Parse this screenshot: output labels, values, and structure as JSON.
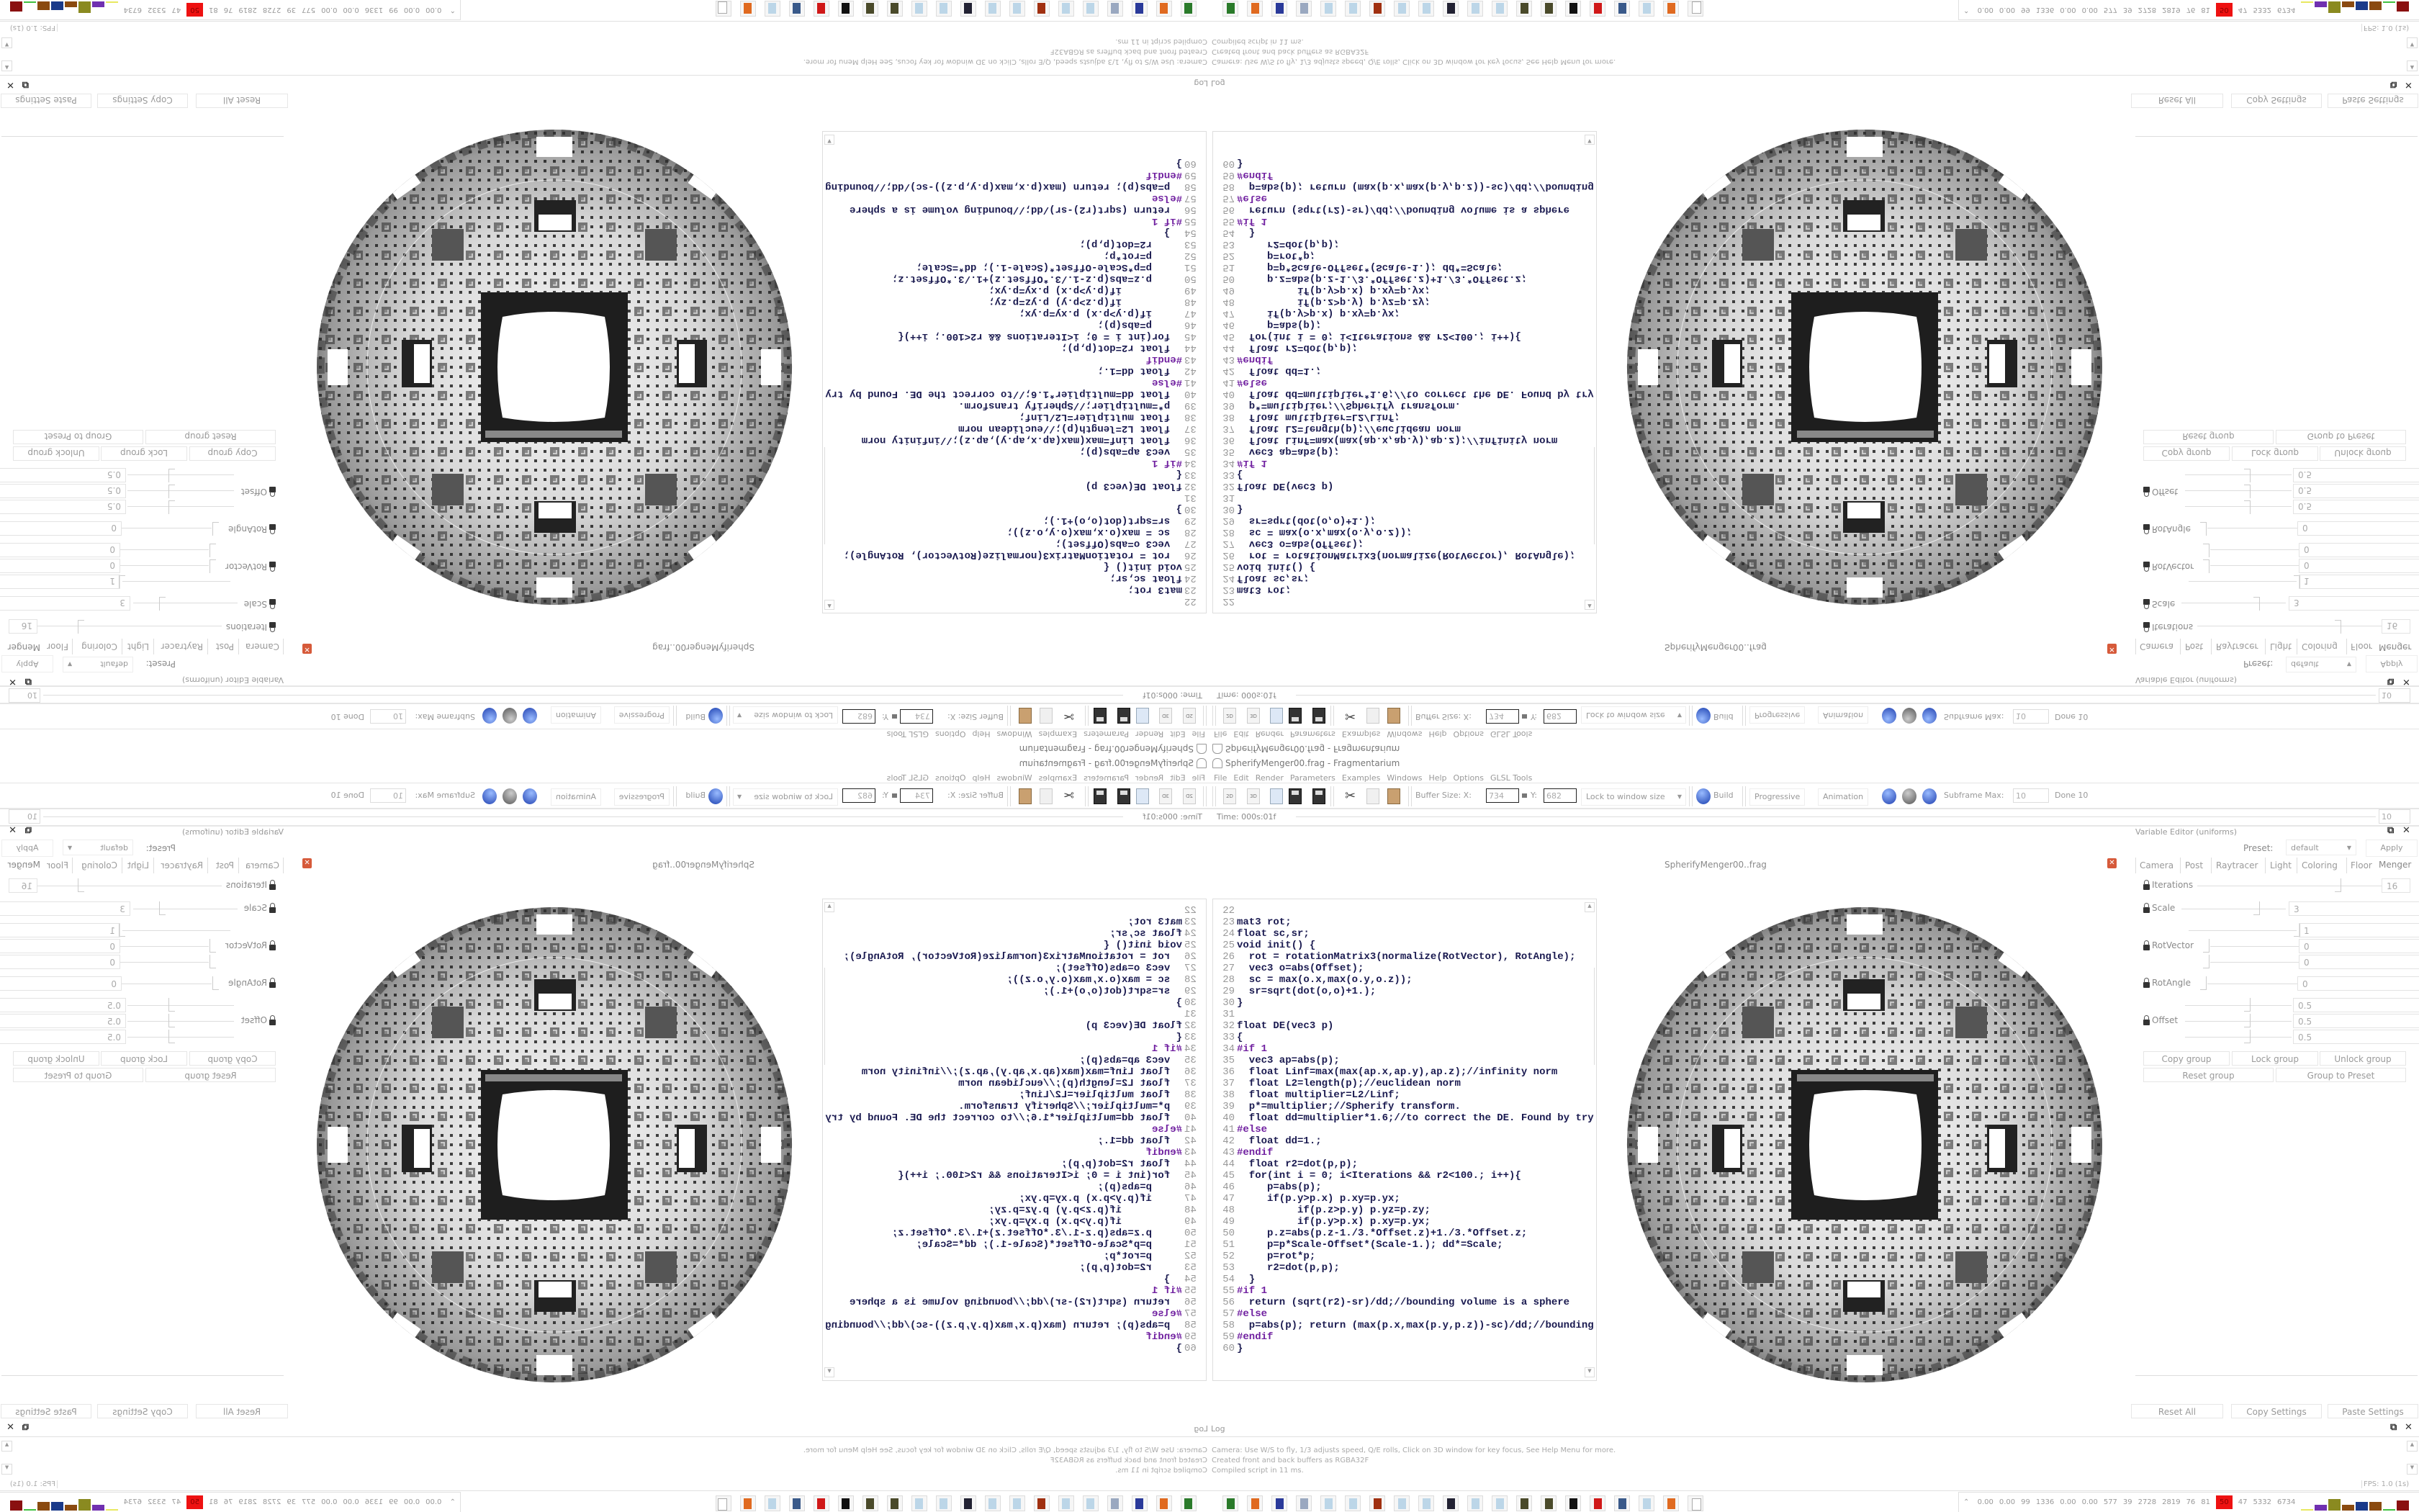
{
  "window": {
    "title": "SpherifyMenger00.frag - Fragmentarium"
  },
  "menu": [
    "File",
    "Edit",
    "Render",
    "Parameters",
    "Examples",
    "Windows",
    "Help",
    "Options",
    "GLSL Tools"
  ],
  "toolbar": {
    "icon_2d": "2D",
    "icon_3d": "3D",
    "buffer_size_label": "Buffer Size: X:",
    "buffer_x": "734",
    "buffer_y_label": "Y:",
    "buffer_y": "682",
    "lock_mode": "Lock to window size",
    "build_label": "Build",
    "progressive_label": "Progressive",
    "animation_label": "Animation",
    "subframe_label": "Subframe Max:",
    "subframe_value": "10",
    "done_label": "Done 10"
  },
  "timeline": {
    "time_label": "Time: 000s:01f",
    "frame_value": "10"
  },
  "editor": {
    "tab_label": "SpherifyMenger00..frag",
    "first_line": 22,
    "code_lines": [
      "",
      "mat3 rot;",
      "float sc,sr;",
      "void init() {",
      "  rot = rotationMatrix3(normalize(RotVector), RotAngle);",
      "  vec3 o=abs(Offset);",
      "  sc = max(o.x,max(o.y,o.z));",
      "  sr=sqrt(dot(o,o)+1.);",
      "}",
      "",
      "float DE(vec3 p)",
      "{",
      "#if 1",
      "  vec3 ap=abs(p);",
      "  float Linf=max(max(ap.x,ap.y),ap.z);//infinity norm",
      "  float L2=length(p);//euclidean norm",
      "  float multiplier=L2/Linf;",
      "  p*=multiplier;//Spherify transform.",
      "  float dd=multiplier*1.6;//to correct the DE. Found by try",
      "#else",
      "  float dd=1.;",
      "#endif",
      "  float r2=dot(p,p);",
      "  for(int i = 0; i<Iterations && r2<100.; i++){",
      "     p=abs(p);",
      "     if(p.y>p.x) p.xy=p.yx;",
      "          if(p.z>p.y) p.yz=p.zy;",
      "          if(p.y>p.x) p.xy=p.yx;",
      "     p.z=abs(p.z-1./3.*Offset.z)+1./3.*Offset.z;",
      "     p=p*Scale-Offset*(Scale-1.); dd*=Scale;",
      "     p=rot*p;",
      "     r2=dot(p,p);",
      "  }",
      "#if 1",
      "  return (sqrt(r2)-sr)/dd;//bounding volume is a sphere",
      "#else",
      "  p=abs(p); return (max(p.x,max(p.y,p.z))-sc)/dd;//bounding",
      "#endif",
      "}"
    ]
  },
  "variable_editor": {
    "title": "Variable Editor (uniforms)",
    "preset_label": "Preset:",
    "preset_value": "default",
    "apply_label": "Apply",
    "tabs": [
      "Camera",
      "Post",
      "Raytracer",
      "Light",
      "Coloring",
      "Floor",
      "Menger"
    ],
    "active_tab": "Menger",
    "params": {
      "iterations": {
        "label": "Iterations",
        "value": "16"
      },
      "scale": {
        "label": "Scale",
        "value": "3"
      },
      "rotvector": {
        "label": "RotVector",
        "values": [
          "1",
          "0",
          "0"
        ]
      },
      "rotangle": {
        "label": "RotAngle",
        "value": "0"
      },
      "offset": {
        "label": "Offset",
        "values": [
          "0.5",
          "0.5",
          "0.5"
        ]
      }
    },
    "group_buttons": [
      "Copy group",
      "Lock group",
      "Unlock group",
      "Reset group",
      "Group to Preset"
    ],
    "bottom_buttons": [
      "Reset All",
      "Copy Settings",
      "Paste Settings"
    ]
  },
  "log": {
    "title": "Log",
    "lines": [
      "Camera: Use W/S to fly, 1/3 adjusts speed, Q/E rolls, Click on 3D window for key focus, See Help Menu for more.",
      "Created front and back buffers as RGBA32F",
      "Compiled script in 11 ms."
    ],
    "fps": "FPS: 1.0 (1s)"
  },
  "taskbar": {
    "icons": [
      "terminal-icon",
      "firefox-icon",
      "floppy-64-icon",
      "notepad-scroll-icon",
      "notepad-icon",
      "notepad-icon",
      "bug-icon",
      "notepad-icon",
      "notepad-icon",
      "ps-icon",
      "notepad-icon",
      "notepad-icon",
      "grenade-icon",
      "grenade-icon",
      "penguin-icon",
      "redhat-icon",
      "monitor-icon",
      "notepad-icon",
      "firefox-icon",
      "fragmentarium-icon"
    ],
    "tray_values": [
      "0.00",
      "0.00",
      "99",
      "1336",
      "0.00",
      "0.00",
      "577",
      "39",
      "2728",
      "2819",
      "76",
      "81",
      "50",
      "47",
      "5332",
      "6734"
    ],
    "tray_alert_color": "#ee1111"
  }
}
